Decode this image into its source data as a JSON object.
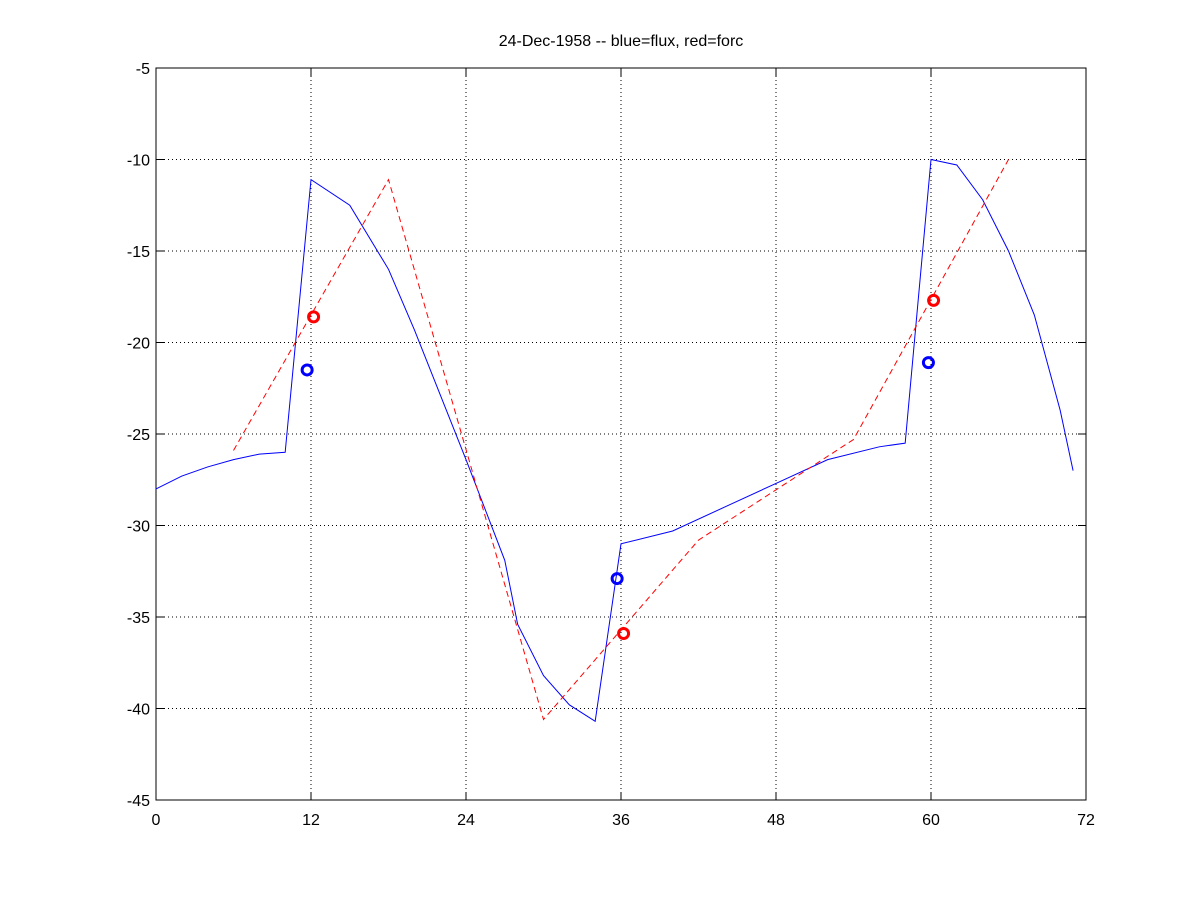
{
  "chart_data": {
    "type": "line",
    "title": "24-Dec-1958 -- blue=flux, red=forc",
    "xlim": [
      0,
      72
    ],
    "xticks": [
      0,
      12,
      24,
      36,
      48,
      60,
      72
    ],
    "ylim": [
      -45,
      -5
    ],
    "yticks": [
      -45,
      -40,
      -35,
      -30,
      -25,
      -20,
      -15,
      -10,
      -5
    ],
    "grid": true,
    "series": [
      {
        "color": "#0000ff",
        "style": "solid",
        "x": [
          0,
          2,
          4,
          6,
          8,
          10,
          12,
          15,
          18,
          20,
          24,
          27,
          28,
          30,
          32,
          34,
          36,
          40,
          44,
          48,
          52,
          56,
          58,
          60,
          62,
          64,
          66,
          68,
          70,
          71
        ],
        "values": [
          -28,
          -27.3,
          -26.8,
          -26.4,
          -26.1,
          -26,
          -11.1,
          -12.5,
          -16,
          -19.3,
          -26.4,
          -31.9,
          -35.4,
          -38.2,
          -39.8,
          -40.7,
          -31,
          -30.3,
          -29,
          -27.7,
          -26.4,
          -25.7,
          -25.5,
          -10,
          -10.3,
          -12.2,
          -15,
          -18.5,
          -23.7,
          -27
        ]
      },
      {
        "color": "#ff0000",
        "style": "dashed",
        "x": [
          6,
          18,
          30,
          42,
          54,
          66
        ],
        "values": [
          -25.9,
          -11.1,
          -40.6,
          -30.8,
          -25.3,
          -10
        ]
      },
      {
        "color": "#0000ff",
        "style": "marker",
        "x": [
          11.7,
          35.7,
          59.8
        ],
        "values": [
          -21.5,
          -32.9,
          -21.1
        ]
      },
      {
        "color": "#ff0000",
        "style": "marker",
        "x": [
          12.2,
          36.2,
          60.2
        ],
        "values": [
          -18.6,
          -35.9,
          -17.7
        ]
      }
    ]
  }
}
